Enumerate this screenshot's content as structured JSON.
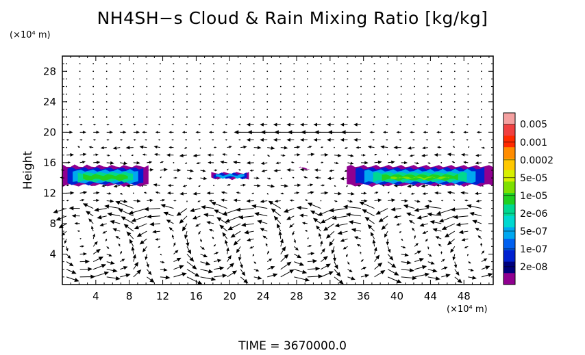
{
  "chart_data": {
    "type": "heatmap",
    "title": "NH4SH−s Cloud & Rain Mixing Ratio [kg/kg]",
    "ylabel": "Height",
    "y_unit": "(×10⁴ m)",
    "x_unit": "(×10⁴ m)",
    "xlim": [
      0,
      51.5
    ],
    "ylim": [
      0,
      30
    ],
    "x_ticks": [
      4,
      8,
      12,
      16,
      20,
      24,
      28,
      32,
      36,
      40,
      44,
      48
    ],
    "y_ticks": [
      4,
      8,
      12,
      16,
      20,
      24,
      28
    ],
    "colorbar": {
      "labels": [
        "0.005",
        "0.001",
        "0.0002",
        "5e-05",
        "1e-05",
        "2e-06",
        "5e-07",
        "1e-07",
        "2e-08"
      ],
      "colors": [
        "#f4a0a0",
        "#f04040",
        "#ff2a00",
        "#ff8c00",
        "#ffc800",
        "#d7f000",
        "#7ee000",
        "#20d020",
        "#00d890",
        "#00d8d0",
        "#00a8f0",
        "#0060f0",
        "#0020d0",
        "#00007c",
        "#900090"
      ]
    },
    "regions": [
      {
        "x": [
          0,
          10.3
        ],
        "y": [
          12.8,
          15.8
        ],
        "max_level": "1e-05"
      },
      {
        "x": [
          17.8,
          22.3
        ],
        "y": [
          13.7,
          14.9
        ],
        "max_level": "5e-07"
      },
      {
        "x": [
          28.3,
          29.5
        ],
        "y": [
          15.0,
          15.5
        ],
        "max_level": "2e-08"
      },
      {
        "x": [
          34.0,
          51.5
        ],
        "y": [
          12.8,
          15.8
        ],
        "max_level": "5e-05"
      }
    ],
    "vectors": "wind arrows on grid, strong eastward-westward flow near 20×10⁴ m and circulation cells below 10×10⁴ m"
  },
  "time_label": "TIME  =  3670000.0"
}
